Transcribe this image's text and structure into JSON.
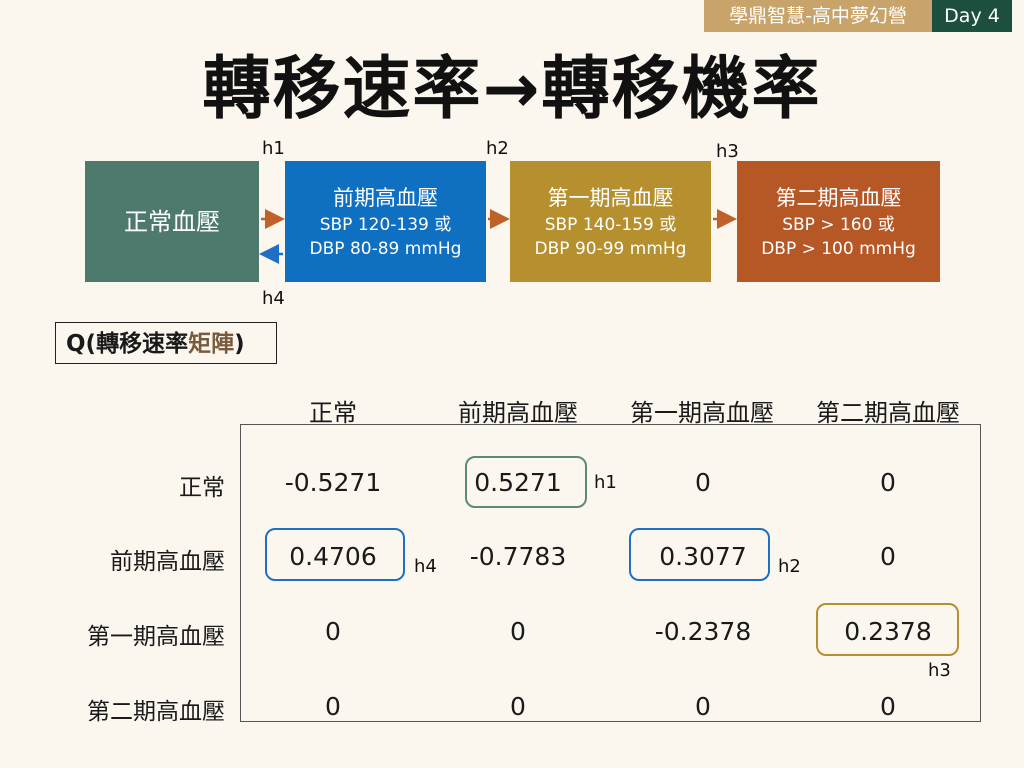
{
  "header": {
    "tag": "學鼎智慧-高中夢幻營",
    "day": "Day 4"
  },
  "title": "轉移速率→轉移機率",
  "diagram": {
    "states": [
      {
        "title": "正常血壓",
        "line1": "",
        "line2": ""
      },
      {
        "title": "前期高血壓",
        "line1": "SBP 120-139 或",
        "line2": "DBP 80-89 mmHg"
      },
      {
        "title": "第一期高血壓",
        "line1": "SBP 140-159 或",
        "line2": "DBP 90-99 mmHg"
      },
      {
        "title": "第二期高血壓",
        "line1": "SBP > 160 或",
        "line2": "DBP > 100 mmHg"
      }
    ],
    "transitions": [
      "h1",
      "h2",
      "h3",
      "h4"
    ],
    "colors": {
      "normal": "#4e7a6d",
      "pre": "#0f6fc1",
      "stage1": "#b6902e",
      "stage2": "#b65726",
      "arrow_forward": "#c0602a",
      "arrow_back": "#1f6fc4"
    }
  },
  "q_label": {
    "prefix": "Q(轉移速率",
    "accent": "矩陣",
    "suffix": ")"
  },
  "matrix": {
    "columns": [
      "正常",
      "前期高血壓",
      "第一期高血壓",
      "第二期高血壓"
    ],
    "rows": [
      "正常",
      "前期高血壓",
      "第一期高血壓",
      "第二期高血壓"
    ],
    "values": [
      [
        "-0.5271",
        "0.5271",
        "0",
        "0"
      ],
      [
        "0.4706",
        "-0.7783",
        "0.3077",
        "0"
      ],
      [
        "0",
        "0",
        "-0.2378",
        "0.2378"
      ],
      [
        "0",
        "0",
        "0",
        "0"
      ]
    ],
    "highlight_labels": [
      "h1",
      "h4",
      "h2",
      "h3"
    ]
  }
}
